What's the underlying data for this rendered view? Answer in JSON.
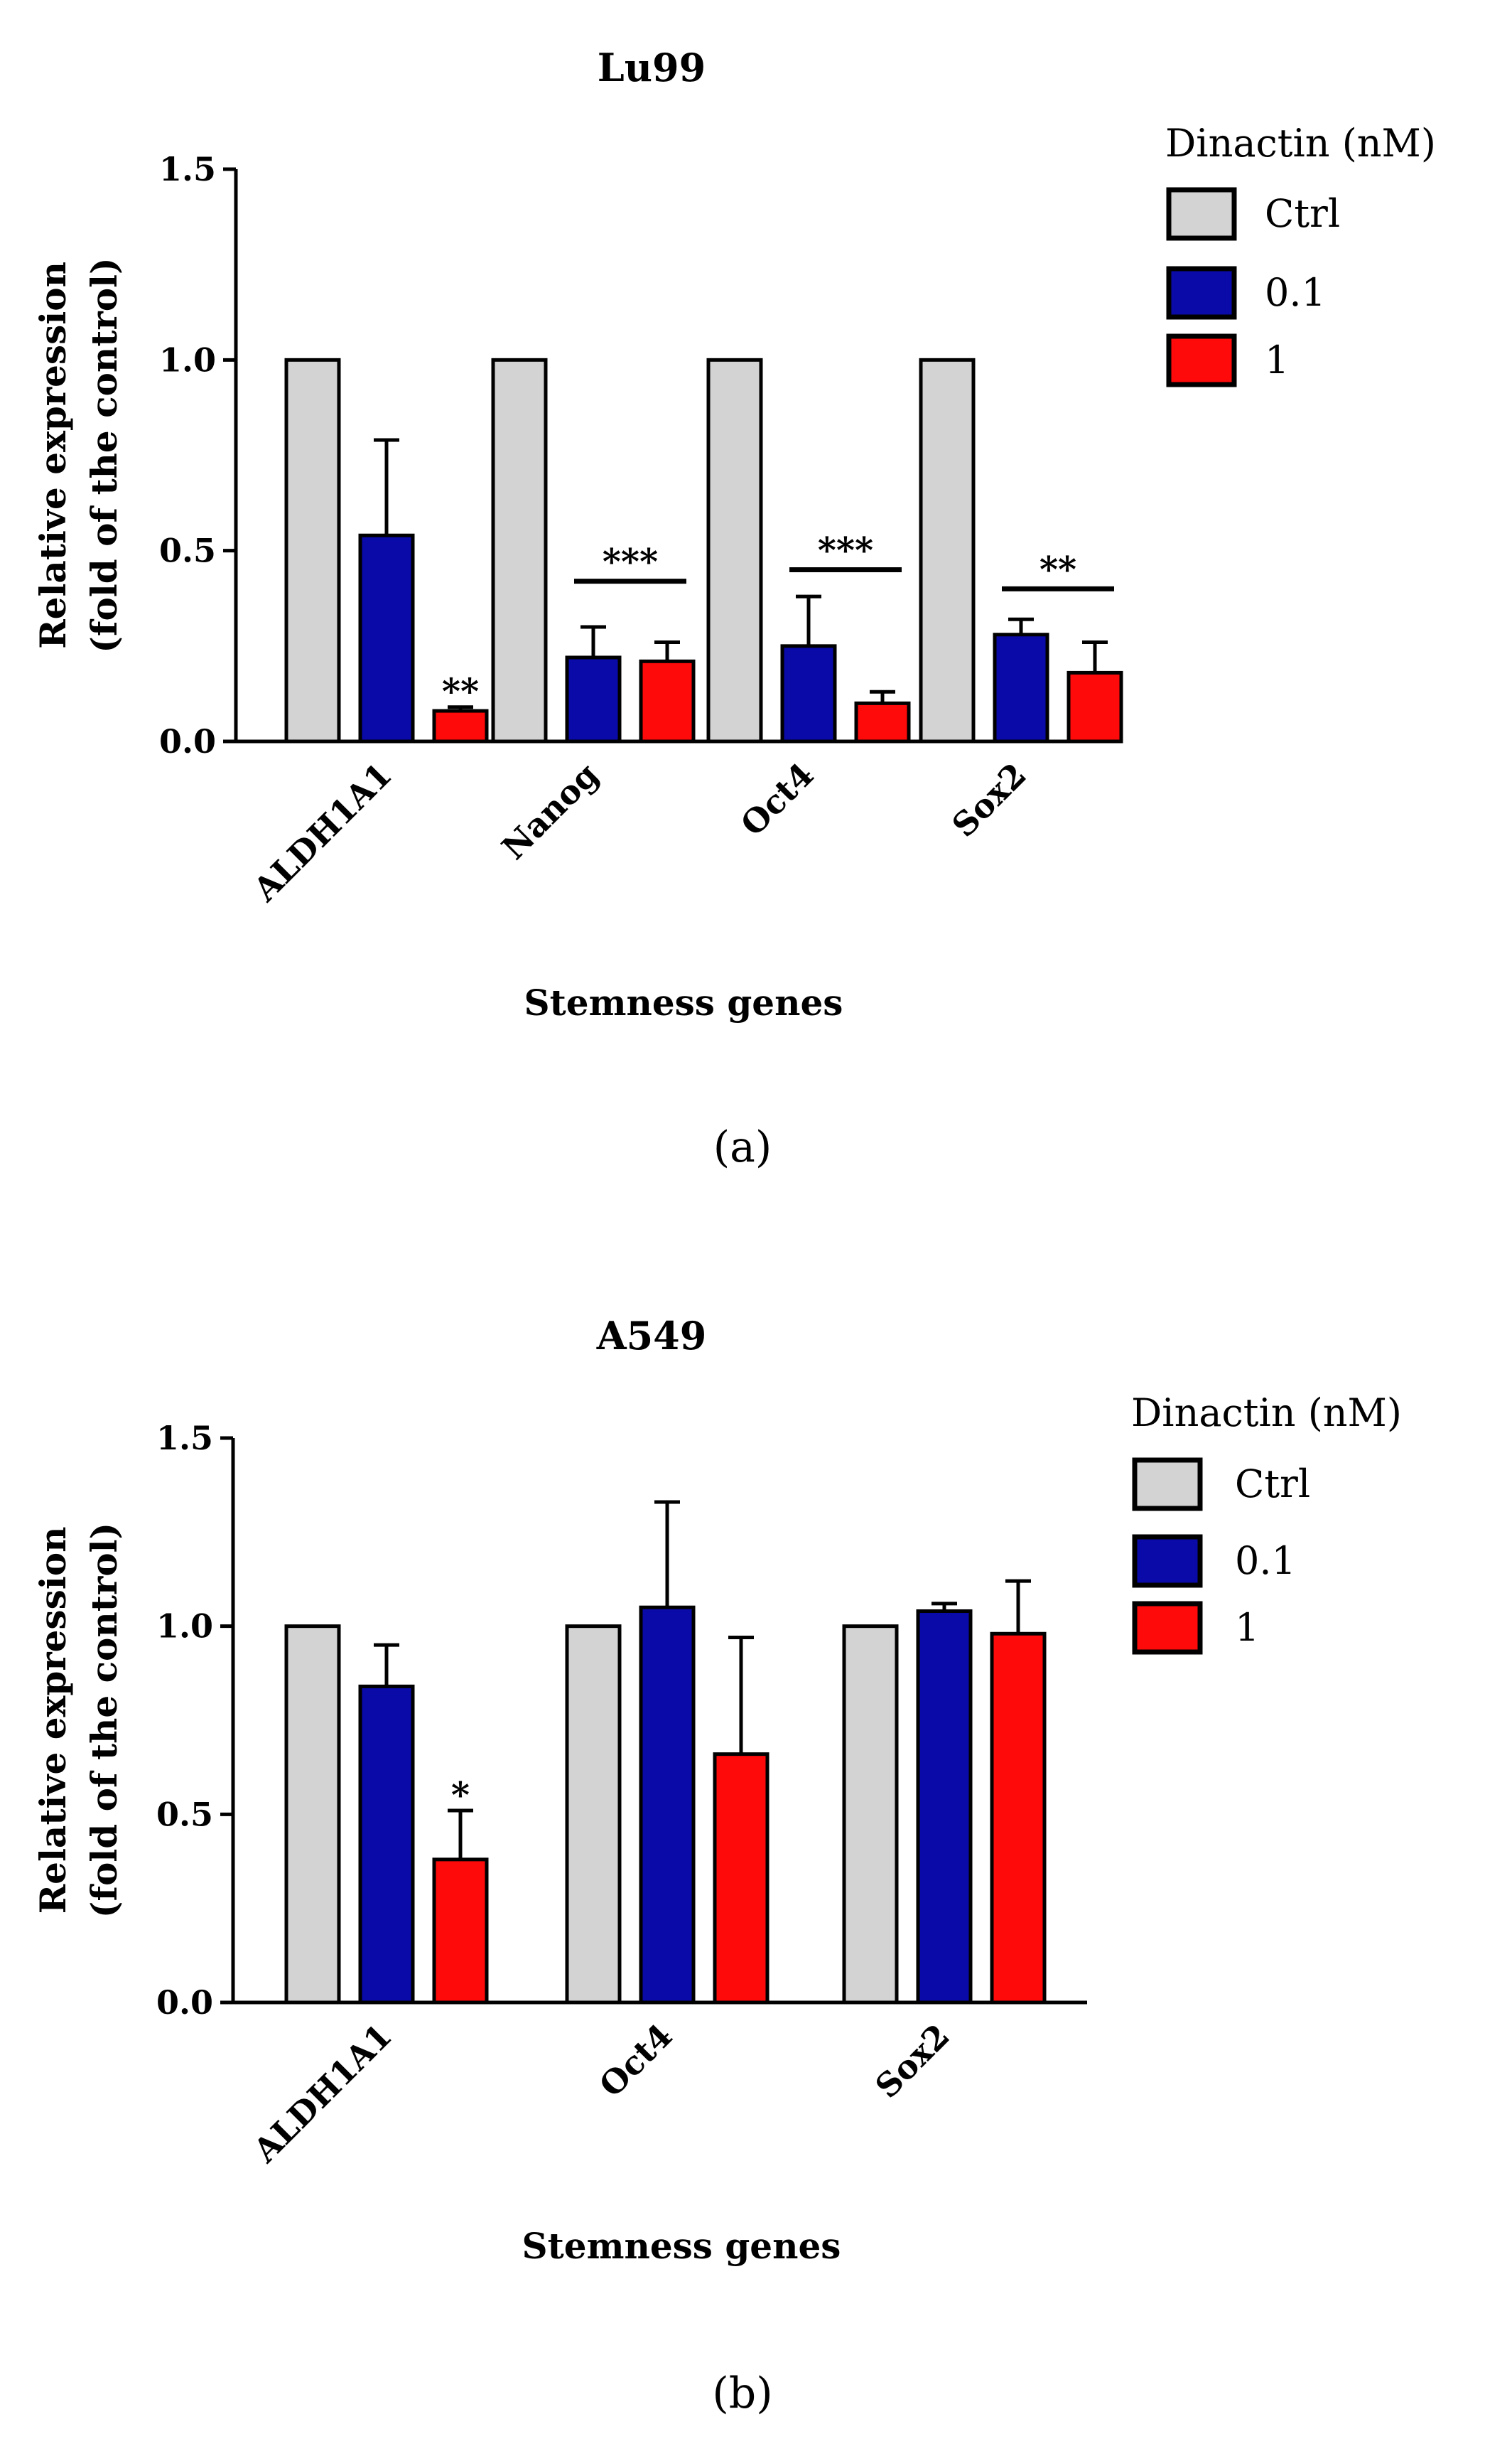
{
  "chart_data": [
    {
      "type": "bar",
      "title": "Lu99",
      "panel_label": "(a)",
      "xlabel": "Stemness genes",
      "ylabel_lines": [
        "Relative expression",
        "(fold of the control)"
      ],
      "ylim": [
        0,
        1.5
      ],
      "yticks": [
        "0.0",
        "0.5",
        "1.0",
        "1.5"
      ],
      "ytick_values": [
        0,
        0.5,
        1.0,
        1.5
      ],
      "categories": [
        "ALDH1A1",
        "Nanog",
        "Oct4",
        "Sox2"
      ],
      "legend_title": "Dinactin (nM)",
      "series": [
        {
          "name": "Ctrl",
          "color": "#d3d3d3",
          "values": [
            1.0,
            1.0,
            1.0,
            1.0
          ],
          "errors": [
            0,
            0,
            0,
            0
          ]
        },
        {
          "name": "0.1",
          "color": "#0a0aa8",
          "values": [
            0.54,
            0.22,
            0.25,
            0.28
          ],
          "errors": [
            0.25,
            0.08,
            0.13,
            0.04
          ]
        },
        {
          "name": "1",
          "color": "#ff0a0a",
          "values": [
            0.08,
            0.21,
            0.1,
            0.18
          ],
          "errors": [
            0.01,
            0.05,
            0.03,
            0.08
          ]
        }
      ],
      "significance": [
        {
          "category": 0,
          "text": "**",
          "type": "single",
          "series": 2,
          "y": 0.11
        },
        {
          "category": 1,
          "text": "***",
          "type": "bracket",
          "y": 0.42
        },
        {
          "category": 2,
          "text": "***",
          "type": "bracket",
          "y": 0.45
        },
        {
          "category": 3,
          "text": "**",
          "type": "bracket",
          "y": 0.4
        }
      ]
    },
    {
      "type": "bar",
      "title": "A549",
      "panel_label": "(b)",
      "xlabel": "Stemness genes",
      "ylabel_lines": [
        "Relative expression",
        "(fold of the control)"
      ],
      "ylim": [
        0,
        1.5
      ],
      "yticks": [
        "0.0",
        "0.5",
        "1.0",
        "1.5"
      ],
      "ytick_values": [
        0,
        0.5,
        1.0,
        1.5
      ],
      "categories": [
        "ALDH1A1",
        "Oct4",
        "Sox2"
      ],
      "legend_title": "Dinactin (nM)",
      "series": [
        {
          "name": "Ctrl",
          "color": "#d3d3d3",
          "values": [
            1.0,
            1.0,
            1.0
          ],
          "errors": [
            0,
            0,
            0
          ]
        },
        {
          "name": "0.1",
          "color": "#0a0aa8",
          "values": [
            0.84,
            1.05,
            1.04
          ],
          "errors": [
            0.11,
            0.28,
            0.02
          ]
        },
        {
          "name": "1",
          "color": "#ff0a0a",
          "values": [
            0.38,
            0.66,
            0.98
          ],
          "errors": [
            0.13,
            0.31,
            0.14
          ]
        }
      ],
      "significance": [
        {
          "category": 0,
          "text": "*",
          "type": "single",
          "series": 2,
          "y": 0.53
        }
      ]
    }
  ]
}
